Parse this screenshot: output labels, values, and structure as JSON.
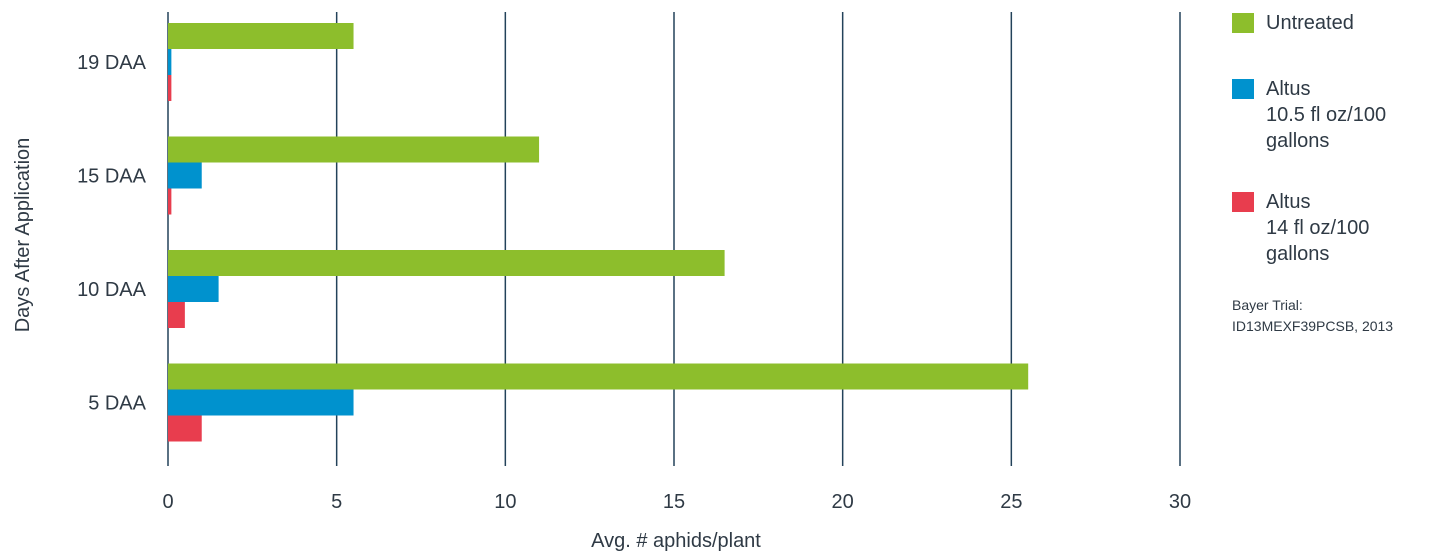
{
  "chart_data": {
    "type": "bar",
    "orientation": "horizontal",
    "categories": [
      "19 DAA",
      "15 DAA",
      "10 DAA",
      "5 DAA"
    ],
    "series": [
      {
        "name": "Untreated",
        "color": "#8dbe2c",
        "values": [
          5.5,
          11.0,
          16.5,
          25.5
        ]
      },
      {
        "name": "Altus 10.5 fl oz/100 gallons",
        "color": "#0092ce",
        "values": [
          0.1,
          1.0,
          1.5,
          5.5
        ]
      },
      {
        "name": "Altus 14 fl oz/100 gallons",
        "color": "#e83d4e",
        "values": [
          0.1,
          0.1,
          0.5,
          1.0
        ]
      }
    ],
    "xlabel": "Avg. # aphids/plant",
    "ylabel": "Days After Application",
    "xlim": [
      0,
      30
    ],
    "xticks": [
      0,
      5,
      10,
      15,
      20,
      25,
      30
    ],
    "grid": "vertical",
    "legend_position": "right"
  },
  "legend": {
    "items": [
      {
        "lines": [
          "Untreated"
        ],
        "color": "#8dbe2c"
      },
      {
        "lines": [
          "Altus",
          "10.5 fl oz/100",
          "gallons"
        ],
        "color": "#0092ce"
      },
      {
        "lines": [
          "Altus",
          "14 fl oz/100",
          "gallons"
        ],
        "color": "#e83d4e"
      }
    ]
  },
  "note": {
    "lines": [
      "Bayer Trial:",
      "ID13MEXF39PCSB, 2013"
    ]
  }
}
